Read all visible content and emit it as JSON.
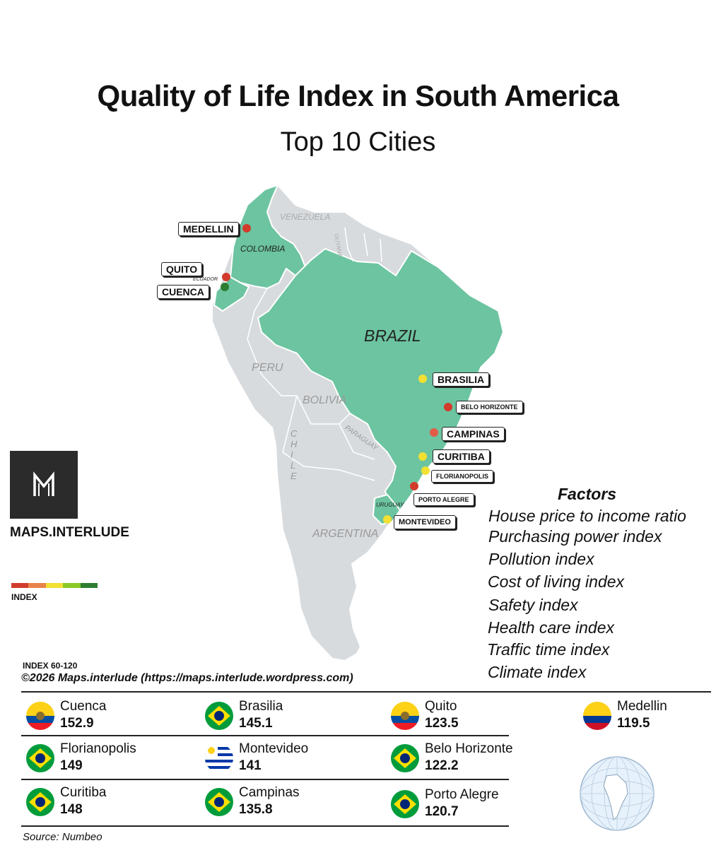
{
  "title": "Quality of Life Index in South America",
  "subtitle": "Top 10 Cities",
  "brand": {
    "name": "MAPS.INTERLUDE"
  },
  "legend": {
    "label": "INDEX",
    "range": "INDEX 60-120",
    "colors": [
      "#d23b2c",
      "#e8834a",
      "#f2e033",
      "#8ac926",
      "#2e7d32"
    ]
  },
  "copyright": "©2026 Maps.interlude (https://maps.interlude.wordpress.com)",
  "factors": {
    "title": "Factors",
    "items": [
      "House price to income ratio",
      "Purchasing power index",
      "Pollution index",
      "Cost of living index",
      "Safety index",
      "Health care index",
      "Traffic time index",
      "Climate index"
    ]
  },
  "map": {
    "countries": {
      "venezuela": "VENEZUELA",
      "guyana": "GUYANA",
      "colombia": "COLOMBIA",
      "ecuador": "ECUADOR",
      "brazil": "BRAZIL",
      "peru": "PERU",
      "bolivia": "BOLIVIA",
      "paraguay": "PARAGUAY",
      "chile": "CHILE",
      "uruguay": "URUGUAY",
      "argentina": "ARGENTINA"
    },
    "labels": {
      "medellin": "MEDELLIN",
      "quito": "QUITO",
      "cuenca": "CUENCA",
      "brasilia": "BRASILIA",
      "belo_horizonte": "BELO HORIZONTE",
      "campinas": "CAMPINAS",
      "curitiba": "CURITIBA",
      "florianopolis": "FLORIANOPOLIS",
      "porto_alegre": "PORTO ALEGRE",
      "montevideo": "MONTEVIDEO"
    },
    "highlight_color": "#6cc4a0",
    "base_color": "#d8dbde"
  },
  "rankings": [
    {
      "city": "Cuenca",
      "score": "152.9",
      "flag": "ecuador-flag-icon"
    },
    {
      "city": "Brasilia",
      "score": "145.1",
      "flag": "brazil-flag-icon"
    },
    {
      "city": "Quito",
      "score": "123.5",
      "flag": "ecuador-flag-icon"
    },
    {
      "city": "Medellin",
      "score": "119.5",
      "flag": "colombia-flag-icon"
    },
    {
      "city": "Florianopolis",
      "score": "149",
      "flag": "brazil-flag-icon"
    },
    {
      "city": "Montevideo",
      "score": "141",
      "flag": "uruguay-flag-icon"
    },
    {
      "city": "Belo Horizonte",
      "score": "122.2",
      "flag": "brazil-flag-icon"
    },
    {
      "city": "Curitiba",
      "score": "148",
      "flag": "brazil-flag-icon"
    },
    {
      "city": "Campinas",
      "score": "135.8",
      "flag": "brazil-flag-icon"
    },
    {
      "city": "Porto Alegre",
      "score": "120.7",
      "flag": "brazil-flag-icon"
    }
  ],
  "source": "Source: Numbeo"
}
